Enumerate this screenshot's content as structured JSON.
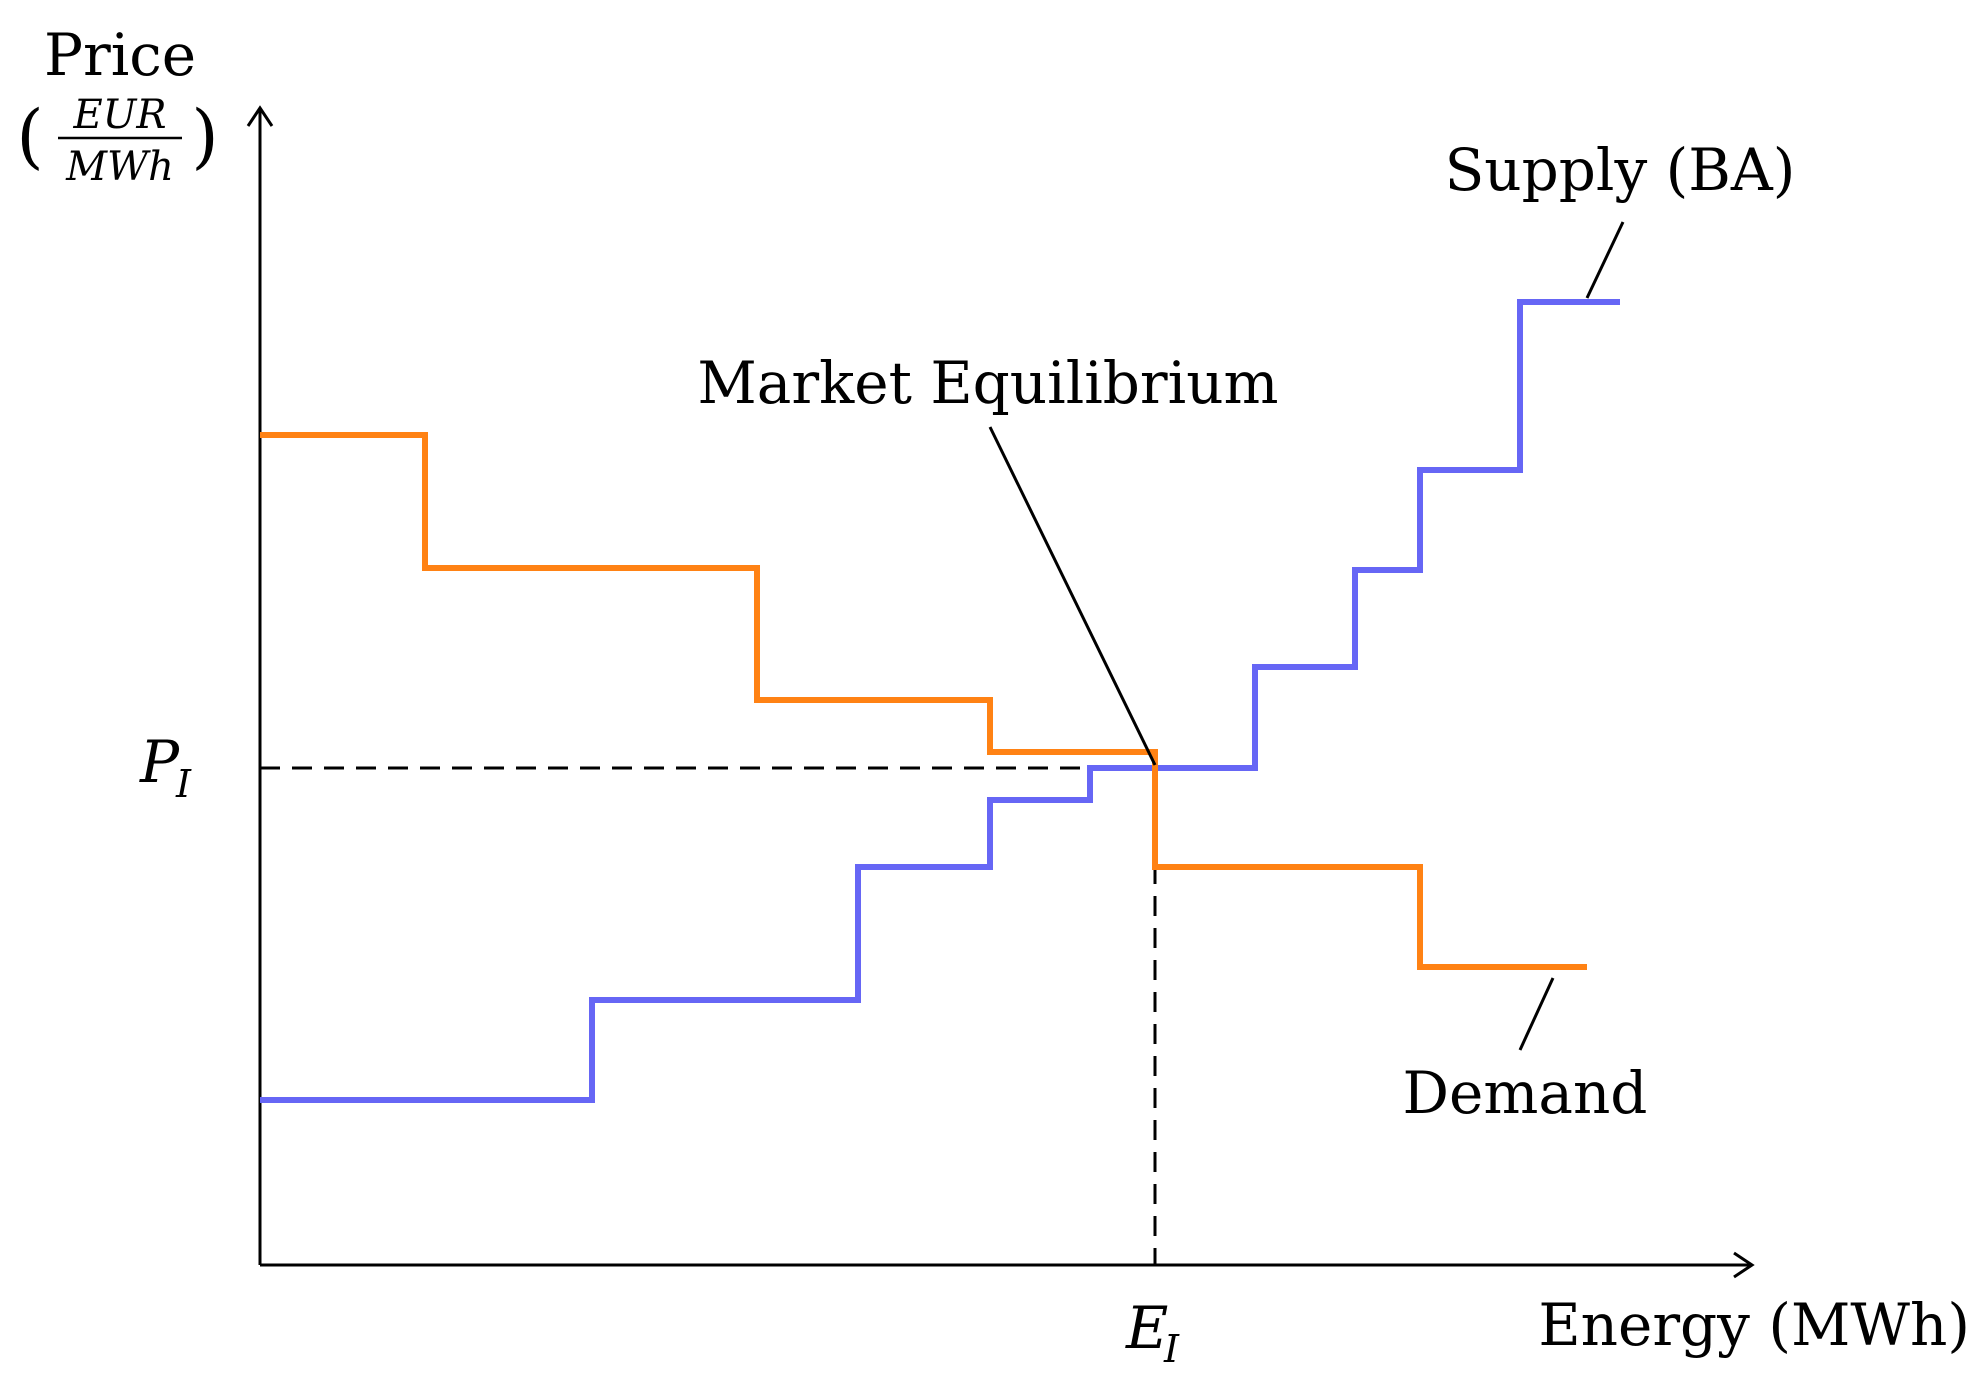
{
  "y_axis": {
    "title": "Price",
    "unit_numerator": "EUR",
    "unit_denominator": "MWh",
    "paren_left": "(",
    "paren_right": ")"
  },
  "x_axis": {
    "title": "Energy (MWh)"
  },
  "equilibrium": {
    "label": "Market Equilibrium",
    "price_symbol": "P",
    "price_subscript": "I",
    "energy_symbol": "E",
    "energy_subscript": "I"
  },
  "curves": {
    "supply": {
      "label": "Supply (BA)",
      "color": "#6666f5"
    },
    "demand": {
      "label": "Demand",
      "color": "#ff8214"
    }
  },
  "colors": {
    "axis": "#000000",
    "guide": "#000000"
  }
}
